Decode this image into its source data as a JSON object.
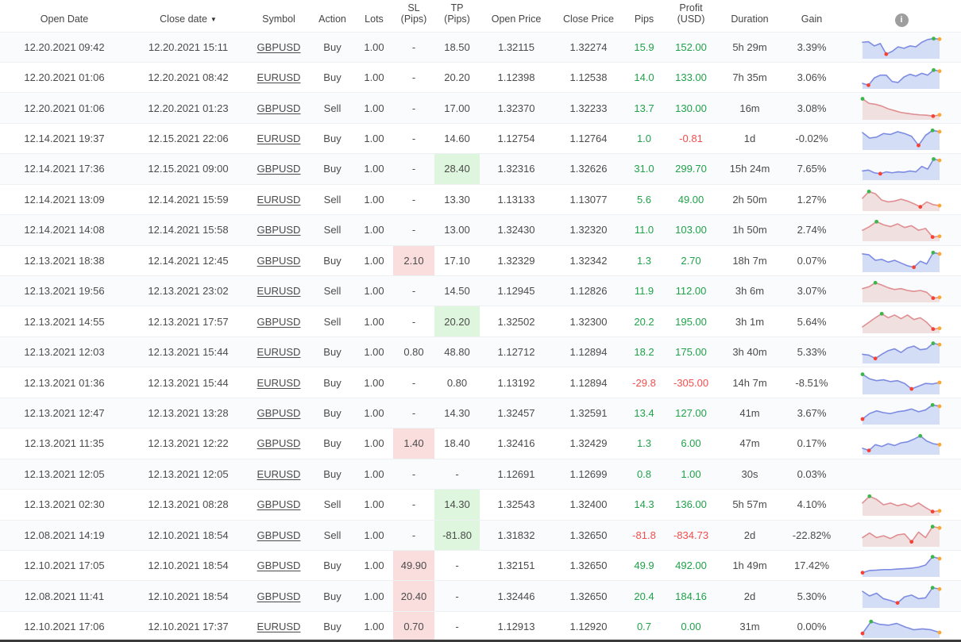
{
  "colors": {
    "positive_text": "#1fa24a",
    "negative_text": "#f34d4d",
    "sl_highlight": "#fadddd",
    "tp_highlight": "#def6dd",
    "spark_blue_line": "#7d8ce2",
    "spark_blue_fill": "#cdd7f5",
    "spark_red_line": "#df8f92",
    "spark_red_fill": "#eedada",
    "marker_max": "#3cb54a",
    "marker_min": "#f44336",
    "marker_last": "#ffa733",
    "info_icon_bg": "#9e9e9e"
  },
  "table": {
    "columns": [
      {
        "id": "open_date",
        "line1": "Open Date"
      },
      {
        "id": "close_date",
        "line1": "Close date",
        "sort": "▼"
      },
      {
        "id": "symbol",
        "line1": "Symbol"
      },
      {
        "id": "action",
        "line1": "Action"
      },
      {
        "id": "lots",
        "line1": "Lots"
      },
      {
        "id": "sl",
        "line1": "SL",
        "line2": "(Pips)"
      },
      {
        "id": "tp",
        "line1": "TP",
        "line2": "(Pips)"
      },
      {
        "id": "open_price",
        "line1": "Open Price"
      },
      {
        "id": "close_price",
        "line1": "Close Price"
      },
      {
        "id": "pips",
        "line1": "Pips"
      },
      {
        "id": "profit",
        "line1": "Profit",
        "line2": "(USD)"
      },
      {
        "id": "duration",
        "line1": "Duration"
      },
      {
        "id": "gain",
        "line1": "Gain"
      },
      {
        "id": "chart",
        "line1": "",
        "icon": "info-icon",
        "icon_glyph": "i"
      }
    ],
    "rows": [
      {
        "open_date": "12.20.2021 09:42",
        "close_date": "12.20.2021 15:11",
        "symbol": "GBPUSD",
        "action": "Buy",
        "lots": "1.00",
        "sl": "-",
        "sl_hl": null,
        "tp": "18.50",
        "tp_hl": null,
        "open_price": "1.32115",
        "close_price": "1.32274",
        "pips": "15.9",
        "pips_color": "green",
        "profit": "152.00",
        "profit_color": "green",
        "duration": "5h 29m",
        "gain": "3.39%",
        "spark": {
          "color": "blue",
          "points": [
            0.75,
            0.78,
            0.55,
            0.68,
            0.1,
            0.25,
            0.5,
            0.42,
            0.55,
            0.5,
            0.75,
            0.9,
            0.95,
            0.92
          ]
        }
      },
      {
        "open_date": "12.20.2021 01:06",
        "close_date": "12.20.2021 08:42",
        "symbol": "EURUSD",
        "action": "Buy",
        "lots": "1.00",
        "sl": "-",
        "sl_hl": null,
        "tp": "20.20",
        "tp_hl": null,
        "open_price": "1.12398",
        "close_price": "1.12538",
        "pips": "14.0",
        "pips_color": "green",
        "profit": "133.00",
        "profit_color": "green",
        "duration": "7h 35m",
        "gain": "3.06%",
        "spark": {
          "color": "blue",
          "points": [
            0.15,
            0.05,
            0.45,
            0.6,
            0.6,
            0.25,
            0.2,
            0.5,
            0.65,
            0.55,
            0.7,
            0.6,
            0.88,
            0.82
          ]
        }
      },
      {
        "open_date": "12.20.2021 01:06",
        "close_date": "12.20.2021 01:23",
        "symbol": "GBPUSD",
        "action": "Sell",
        "lots": "1.00",
        "sl": "-",
        "sl_hl": null,
        "tp": "17.00",
        "tp_hl": null,
        "open_price": "1.32370",
        "close_price": "1.32233",
        "pips": "13.7",
        "pips_color": "green",
        "profit": "130.00",
        "profit_color": "green",
        "duration": "16m",
        "gain": "3.08%",
        "spark": {
          "color": "red",
          "points": [
            1.0,
            0.75,
            0.7,
            0.6,
            0.45,
            0.35,
            0.25,
            0.2,
            0.15,
            0.12,
            0.1,
            0.05,
            0.12
          ]
        }
      },
      {
        "open_date": "12.14.2021 19:37",
        "close_date": "12.15.2021 22:06",
        "symbol": "EURUSD",
        "action": "Buy",
        "lots": "1.00",
        "sl": "-",
        "sl_hl": null,
        "tp": "14.60",
        "tp_hl": null,
        "open_price": "1.12754",
        "close_price": "1.12764",
        "pips": "1.0",
        "pips_color": "green",
        "profit": "-0.81",
        "profit_color": "red",
        "duration": "1d",
        "gain": "-0.02%",
        "spark": {
          "color": "blue",
          "points": [
            0.8,
            0.5,
            0.55,
            0.75,
            0.7,
            0.85,
            0.75,
            0.6,
            0.1,
            0.65,
            0.92,
            0.85
          ]
        }
      },
      {
        "open_date": "12.14.2021 17:36",
        "close_date": "12.15.2021 09:00",
        "symbol": "GBPUSD",
        "action": "Buy",
        "lots": "1.00",
        "sl": "-",
        "sl_hl": null,
        "tp": "28.40",
        "tp_hl": "green",
        "open_price": "1.32316",
        "close_price": "1.32626",
        "pips": "31.0",
        "pips_color": "green",
        "profit": "299.70",
        "profit_color": "green",
        "duration": "15h 24m",
        "gain": "7.65%",
        "spark": {
          "color": "blue",
          "points": [
            0.35,
            0.4,
            0.25,
            0.2,
            0.3,
            0.25,
            0.3,
            0.28,
            0.35,
            0.3,
            0.6,
            0.45,
            1.0,
            0.93
          ]
        }
      },
      {
        "open_date": "12.14.2021 13:09",
        "close_date": "12.14.2021 15:59",
        "symbol": "EURUSD",
        "action": "Sell",
        "lots": "1.00",
        "sl": "-",
        "sl_hl": null,
        "tp": "13.30",
        "tp_hl": null,
        "open_price": "1.13133",
        "close_price": "1.13077",
        "pips": "5.6",
        "pips_color": "green",
        "profit": "49.00",
        "profit_color": "green",
        "duration": "2h 50m",
        "gain": "1.27%",
        "spark": {
          "color": "red",
          "points": [
            0.55,
            0.92,
            0.8,
            0.45,
            0.35,
            0.4,
            0.5,
            0.4,
            0.25,
            0.08,
            0.35,
            0.2,
            0.15
          ]
        }
      },
      {
        "open_date": "12.14.2021 14:08",
        "close_date": "12.14.2021 15:58",
        "symbol": "GBPUSD",
        "action": "Sell",
        "lots": "1.00",
        "sl": "-",
        "sl_hl": null,
        "tp": "13.00",
        "tp_hl": null,
        "open_price": "1.32430",
        "close_price": "1.32320",
        "pips": "11.0",
        "pips_color": "green",
        "profit": "103.00",
        "profit_color": "green",
        "duration": "1h 50m",
        "gain": "2.74%",
        "spark": {
          "color": "red",
          "points": [
            0.45,
            0.65,
            0.92,
            0.75,
            0.65,
            0.8,
            0.6,
            0.7,
            0.45,
            0.55,
            0.08,
            0.12
          ]
        }
      },
      {
        "open_date": "12.13.2021 18:38",
        "close_date": "12.14.2021 12:45",
        "symbol": "GBPUSD",
        "action": "Buy",
        "lots": "1.00",
        "sl": "2.10",
        "sl_hl": "red",
        "tp": "17.10",
        "tp_hl": null,
        "open_price": "1.32329",
        "close_price": "1.32342",
        "pips": "1.3",
        "pips_color": "green",
        "profit": "2.70",
        "profit_color": "green",
        "duration": "18h 7m",
        "gain": "0.07%",
        "spark": {
          "color": "blue",
          "points": [
            0.85,
            0.8,
            0.5,
            0.55,
            0.4,
            0.5,
            0.35,
            0.2,
            0.12,
            0.45,
            0.3,
            0.92,
            0.85
          ]
        }
      },
      {
        "open_date": "12.13.2021 19:56",
        "close_date": "12.13.2021 23:02",
        "symbol": "EURUSD",
        "action": "Sell",
        "lots": "1.00",
        "sl": "-",
        "sl_hl": null,
        "tp": "14.50",
        "tp_hl": null,
        "open_price": "1.12945",
        "close_price": "1.12826",
        "pips": "11.9",
        "pips_color": "green",
        "profit": "112.00",
        "profit_color": "green",
        "duration": "3h 6m",
        "gain": "3.07%",
        "spark": {
          "color": "red",
          "points": [
            0.6,
            0.7,
            0.92,
            0.8,
            0.65,
            0.55,
            0.6,
            0.5,
            0.45,
            0.5,
            0.4,
            0.08,
            0.12
          ]
        }
      },
      {
        "open_date": "12.13.2021 14:55",
        "close_date": "12.13.2021 17:57",
        "symbol": "GBPUSD",
        "action": "Sell",
        "lots": "1.00",
        "sl": "-",
        "sl_hl": null,
        "tp": "20.20",
        "tp_hl": "green",
        "open_price": "1.32502",
        "close_price": "1.32300",
        "pips": "20.2",
        "pips_color": "green",
        "profit": "195.00",
        "profit_color": "green",
        "duration": "3h 1m",
        "gain": "5.64%",
        "spark": {
          "color": "red",
          "points": [
            0.2,
            0.45,
            0.7,
            0.92,
            0.7,
            0.85,
            0.65,
            0.85,
            0.6,
            0.7,
            0.45,
            0.08,
            0.12
          ]
        }
      },
      {
        "open_date": "12.13.2021 12:03",
        "close_date": "12.13.2021 15:44",
        "symbol": "EURUSD",
        "action": "Buy",
        "lots": "1.00",
        "sl": "0.80",
        "sl_hl": null,
        "tp": "48.80",
        "tp_hl": null,
        "open_price": "1.12712",
        "close_price": "1.12894",
        "pips": "18.2",
        "pips_color": "green",
        "profit": "175.00",
        "profit_color": "green",
        "duration": "3h 40m",
        "gain": "5.33%",
        "spark": {
          "color": "blue",
          "points": [
            0.35,
            0.3,
            0.12,
            0.35,
            0.55,
            0.65,
            0.45,
            0.7,
            0.8,
            0.6,
            0.65,
            0.95,
            0.88
          ]
        }
      },
      {
        "open_date": "12.13.2021 01:36",
        "close_date": "12.13.2021 15:44",
        "symbol": "EURUSD",
        "action": "Buy",
        "lots": "1.00",
        "sl": "-",
        "sl_hl": null,
        "tp": "0.80",
        "tp_hl": null,
        "open_price": "1.13192",
        "close_price": "1.12894",
        "pips": "-29.8",
        "pips_color": "red",
        "profit": "-305.00",
        "profit_color": "red",
        "duration": "14h 7m",
        "gain": "-8.51%",
        "spark": {
          "color": "blue",
          "points": [
            0.95,
            0.7,
            0.6,
            0.65,
            0.55,
            0.6,
            0.45,
            0.15,
            0.3,
            0.45,
            0.42,
            0.5
          ]
        }
      },
      {
        "open_date": "12.13.2021 12:47",
        "close_date": "12.13.2021 13:28",
        "symbol": "GBPUSD",
        "action": "Buy",
        "lots": "1.00",
        "sl": "-",
        "sl_hl": null,
        "tp": "14.30",
        "tp_hl": null,
        "open_price": "1.32457",
        "close_price": "1.32591",
        "pips": "13.4",
        "pips_color": "green",
        "profit": "127.00",
        "profit_color": "green",
        "duration": "41m",
        "gain": "3.67%",
        "spark": {
          "color": "blue",
          "points": [
            0.15,
            0.45,
            0.6,
            0.5,
            0.45,
            0.55,
            0.6,
            0.7,
            0.55,
            0.65,
            0.92,
            0.85
          ]
        }
      },
      {
        "open_date": "12.13.2021 11:35",
        "close_date": "12.13.2021 12:22",
        "symbol": "GBPUSD",
        "action": "Buy",
        "lots": "1.00",
        "sl": "1.40",
        "sl_hl": "red",
        "tp": "18.40",
        "tp_hl": null,
        "open_price": "1.32416",
        "close_price": "1.32429",
        "pips": "1.3",
        "pips_color": "green",
        "profit": "6.00",
        "profit_color": "green",
        "duration": "47m",
        "gain": "0.17%",
        "spark": {
          "color": "blue",
          "points": [
            0.2,
            0.08,
            0.4,
            0.3,
            0.45,
            0.35,
            0.5,
            0.55,
            0.7,
            0.88,
            0.6,
            0.45,
            0.4
          ]
        }
      },
      {
        "open_date": "12.13.2021 12:05",
        "close_date": "12.13.2021 12:05",
        "symbol": "EURUSD",
        "action": "Buy",
        "lots": "1.00",
        "sl": "-",
        "sl_hl": null,
        "tp": "-",
        "tp_hl": null,
        "open_price": "1.12691",
        "close_price": "1.12699",
        "pips": "0.8",
        "pips_color": "green",
        "profit": "1.00",
        "profit_color": "green",
        "duration": "30s",
        "gain": "0.03%",
        "spark": null
      },
      {
        "open_date": "12.13.2021 02:30",
        "close_date": "12.13.2021 08:28",
        "symbol": "GBPUSD",
        "action": "Sell",
        "lots": "1.00",
        "sl": "-",
        "sl_hl": null,
        "tp": "14.30",
        "tp_hl": "green",
        "open_price": "1.32543",
        "close_price": "1.32400",
        "pips": "14.3",
        "pips_color": "green",
        "profit": "136.00",
        "profit_color": "green",
        "duration": "5h 57m",
        "gain": "4.10%",
        "spark": {
          "color": "red",
          "points": [
            0.55,
            0.92,
            0.75,
            0.45,
            0.55,
            0.4,
            0.5,
            0.35,
            0.55,
            0.3,
            0.08,
            0.12
          ]
        }
      },
      {
        "open_date": "12.08.2021 14:19",
        "close_date": "12.10.2021 18:54",
        "symbol": "GBPUSD",
        "action": "Sell",
        "lots": "1.00",
        "sl": "-",
        "sl_hl": null,
        "tp": "-81.80",
        "tp_hl": "green",
        "open_price": "1.31832",
        "close_price": "1.32650",
        "pips": "-81.8",
        "pips_color": "red",
        "profit": "-834.73",
        "profit_color": "red",
        "duration": "2d",
        "gain": "-22.82%",
        "spark": {
          "color": "red",
          "points": [
            0.35,
            0.6,
            0.35,
            0.45,
            0.3,
            0.5,
            0.55,
            0.12,
            0.65,
            0.35,
            0.95,
            0.88
          ]
        }
      },
      {
        "open_date": "12.10.2021 17:05",
        "close_date": "12.10.2021 18:54",
        "symbol": "GBPUSD",
        "action": "Buy",
        "lots": "1.00",
        "sl": "49.90",
        "sl_hl": "red",
        "tp": "-",
        "tp_hl": null,
        "open_price": "1.32151",
        "close_price": "1.32650",
        "pips": "49.9",
        "pips_color": "green",
        "profit": "492.00",
        "profit_color": "green",
        "duration": "1h 49m",
        "gain": "17.42%",
        "spark": {
          "color": "blue",
          "points": [
            0.08,
            0.2,
            0.22,
            0.25,
            0.25,
            0.28,
            0.3,
            0.33,
            0.38,
            0.5,
            0.95,
            0.85
          ]
        }
      },
      {
        "open_date": "12.08.2021 11:41",
        "close_date": "12.10.2021 18:54",
        "symbol": "GBPUSD",
        "action": "Buy",
        "lots": "1.00",
        "sl": "20.40",
        "sl_hl": "red",
        "tp": "-",
        "tp_hl": null,
        "open_price": "1.32446",
        "close_price": "1.32650",
        "pips": "20.4",
        "pips_color": "green",
        "profit": "184.16",
        "profit_color": "green",
        "duration": "2d",
        "gain": "5.30%",
        "spark": {
          "color": "blue",
          "points": [
            0.75,
            0.5,
            0.65,
            0.35,
            0.25,
            0.12,
            0.45,
            0.55,
            0.35,
            0.4,
            0.95,
            0.88
          ]
        }
      },
      {
        "open_date": "12.10.2021 17:06",
        "close_date": "12.10.2021 17:37",
        "symbol": "EURUSD",
        "action": "Buy",
        "lots": "1.00",
        "sl": "0.70",
        "sl_hl": "red",
        "tp": "-",
        "tp_hl": null,
        "open_price": "1.12913",
        "close_price": "1.12920",
        "pips": "0.7",
        "pips_color": "green",
        "profit": "0.00",
        "profit_color": "green",
        "duration": "31m",
        "gain": "0.00%",
        "spark": {
          "color": "blue",
          "points": [
            0.1,
            0.75,
            0.6,
            0.55,
            0.65,
            0.45,
            0.3,
            0.35,
            0.3,
            0.15
          ]
        }
      }
    ]
  }
}
